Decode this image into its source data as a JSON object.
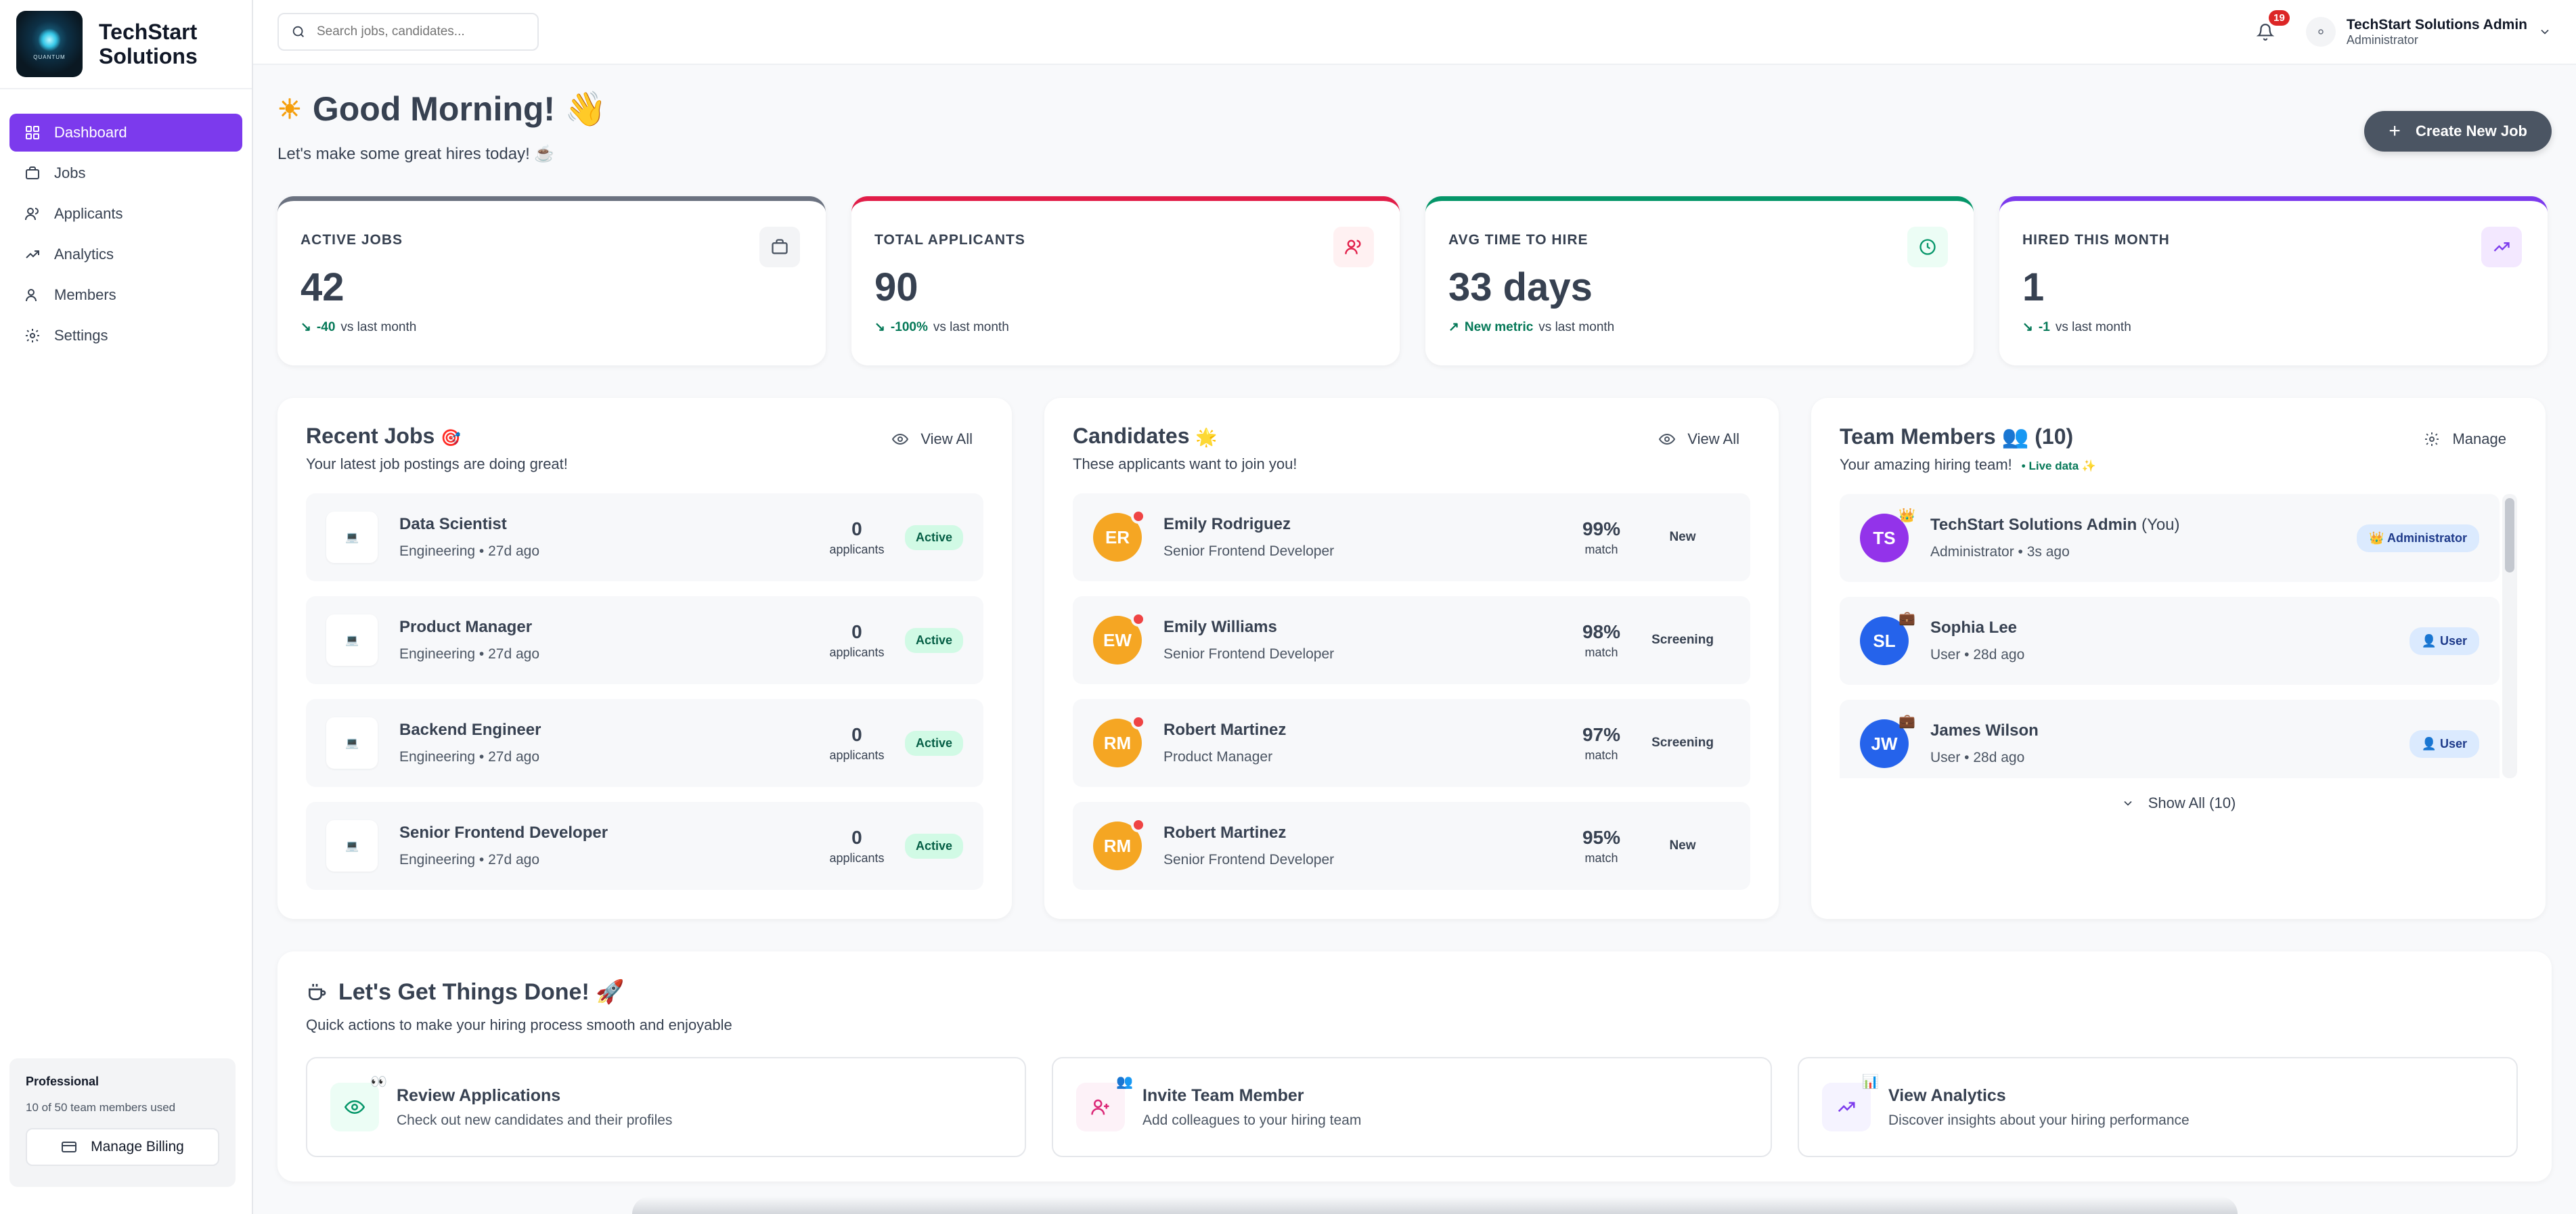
{
  "brand": {
    "name_line1": "TechStart",
    "name_line2": "Solutions",
    "logo_text": "QUANTUM"
  },
  "nav": [
    {
      "label": "Dashboard",
      "icon": "grid-icon",
      "active": true
    },
    {
      "label": "Jobs",
      "icon": "briefcase-icon"
    },
    {
      "label": "Applicants",
      "icon": "users-icon"
    },
    {
      "label": "Analytics",
      "icon": "trend-icon"
    },
    {
      "label": "Members",
      "icon": "user-icon"
    },
    {
      "label": "Settings",
      "icon": "gear-icon"
    }
  ],
  "plan": {
    "name": "Professional",
    "usage": "10 of 50 team members used",
    "billing_label": "Manage Billing"
  },
  "topbar": {
    "search_placeholder": "Search jobs, candidates...",
    "notifications": "19",
    "user_name": "TechStart Solutions Admin",
    "user_role": "Administrator"
  },
  "greeting": {
    "title": "Good Morning! 👋",
    "sun": "☀",
    "subtitle": "Let's make some great hires today! ☕",
    "create_label": "Create New Job"
  },
  "stats": [
    {
      "label": "ACTIVE JOBS",
      "value": "42",
      "delta": "-40",
      "suffix": "vs last month",
      "color": "#6b7280"
    },
    {
      "label": "TOTAL APPLICANTS",
      "value": "90",
      "delta": "-100%",
      "suffix": "vs last month",
      "color": "#e11d48"
    },
    {
      "label": "AVG TIME TO HIRE",
      "value": "33 days",
      "delta": "New metric",
      "suffix": "vs last month",
      "color": "#059669"
    },
    {
      "label": "HIRED THIS MONTH",
      "value": "1",
      "delta": "-1",
      "suffix": "vs last month",
      "color": "#7c3aed"
    }
  ],
  "recent_jobs": {
    "title": "Recent Jobs",
    "emoji": "🎯",
    "subtitle": "Your latest job postings are doing great!",
    "view_all": "View All",
    "items": [
      {
        "title": "Data Scientist",
        "meta": "Engineering • 27d ago",
        "count": "0",
        "count_label": "applicants",
        "status": "Active"
      },
      {
        "title": "Product Manager",
        "meta": "Engineering • 27d ago",
        "count": "0",
        "count_label": "applicants",
        "status": "Active"
      },
      {
        "title": "Backend Engineer",
        "meta": "Engineering • 27d ago",
        "count": "0",
        "count_label": "applicants",
        "status": "Active"
      },
      {
        "title": "Senior Frontend Developer",
        "meta": "Engineering • 27d ago",
        "count": "0",
        "count_label": "applicants",
        "status": "Active"
      }
    ]
  },
  "candidates": {
    "title": "Candidates",
    "emoji": "🌟",
    "subtitle": "These applicants want to join you!",
    "view_all": "View All",
    "items": [
      {
        "initials": "ER",
        "name": "Emily Rodriguez",
        "role": "Senior Frontend Developer",
        "match": "99%",
        "match_label": "match",
        "status": "New"
      },
      {
        "initials": "EW",
        "name": "Emily Williams",
        "role": "Senior Frontend Developer",
        "match": "98%",
        "match_label": "match",
        "status": "Screening"
      },
      {
        "initials": "RM",
        "name": "Robert Martinez",
        "role": "Product Manager",
        "match": "97%",
        "match_label": "match",
        "status": "Screening"
      },
      {
        "initials": "RM",
        "name": "Robert Martinez",
        "role": "Senior Frontend Developer",
        "match": "95%",
        "match_label": "match",
        "status": "New"
      }
    ]
  },
  "team": {
    "title": "Team Members 👥 (10)",
    "subtitle": "Your amazing hiring team!",
    "live": "• Live data ✨",
    "manage": "Manage",
    "show_all": "Show All (10)",
    "items": [
      {
        "initials": "TS",
        "name": "TechStart Solutions Admin",
        "you": "(You)",
        "meta": "Administrator • 3s ago",
        "role": "👑 Administrator",
        "color": "#9333ea",
        "badge": "👑"
      },
      {
        "initials": "SL",
        "name": "Sophia Lee",
        "you": "",
        "meta": "User • 28d ago",
        "role": "👤 User",
        "color": "#2563eb",
        "badge": "💼"
      },
      {
        "initials": "JW",
        "name": "James Wilson",
        "you": "",
        "meta": "User • 28d ago",
        "role": "👤 User",
        "color": "#2563eb",
        "badge": "💼"
      }
    ]
  },
  "quick_actions": {
    "title": "Let's Get Things Done! 🚀",
    "subtitle": "Quick actions to make your hiring process smooth and enjoyable",
    "items": [
      {
        "title": "Review Applications",
        "desc": "Check out new candidates and their profiles",
        "emoji": "👀",
        "color": "#ecfdf5",
        "icon": "eye-icon"
      },
      {
        "title": "Invite Team Member",
        "desc": "Add colleagues to your hiring team",
        "emoji": "👥",
        "color": "#fdf2f8",
        "icon": "user-plus-icon"
      },
      {
        "title": "View Analytics",
        "desc": "Discover insights about your hiring performance",
        "emoji": "📊",
        "color": "#f5f3ff",
        "icon": "trend-icon"
      }
    ]
  }
}
